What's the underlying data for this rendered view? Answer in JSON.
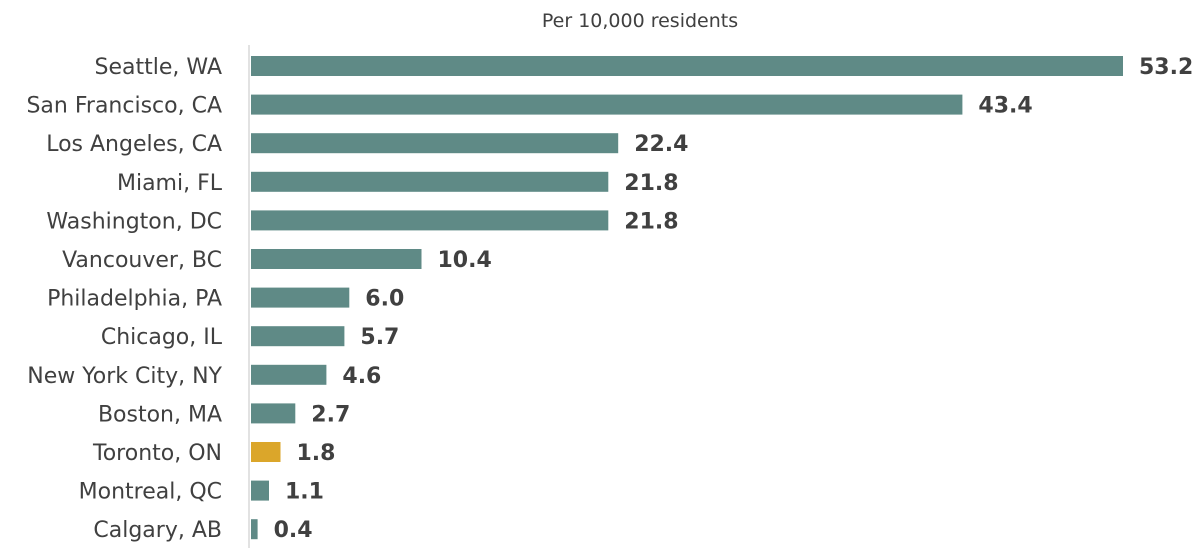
{
  "chart_data": {
    "type": "bar",
    "orientation": "horizontal",
    "title": "",
    "subtitle": "Per 10,000 residents",
    "categories": [
      "Seattle, WA",
      "San Francisco, CA",
      "Los Angeles, CA",
      "Miami, FL",
      "Washington, DC",
      "Vancouver, BC",
      "Philadelphia, PA",
      "Chicago, IL",
      "New York City, NY",
      "Boston, MA",
      "Toronto, ON",
      "Montreal, QC",
      "Calgary, AB"
    ],
    "values": [
      53.2,
      43.4,
      22.4,
      21.8,
      21.8,
      10.4,
      6.0,
      5.7,
      4.6,
      2.7,
      1.8,
      1.1,
      0.4
    ],
    "value_labels": [
      "53.2",
      "43.4",
      "22.4",
      "21.8",
      "21.8",
      "10.4",
      "6.0",
      "5.7",
      "4.6",
      "2.7",
      "1.8",
      "1.1",
      "0.4"
    ],
    "xlim": [
      0,
      53.2
    ],
    "grid": false,
    "legend": "none",
    "highlight_category": "Toronto, ON"
  },
  "colors": {
    "bar": "#5f8a86",
    "highlight": "#dba62a",
    "axis": "#d9d9d9",
    "text": "#404040"
  }
}
